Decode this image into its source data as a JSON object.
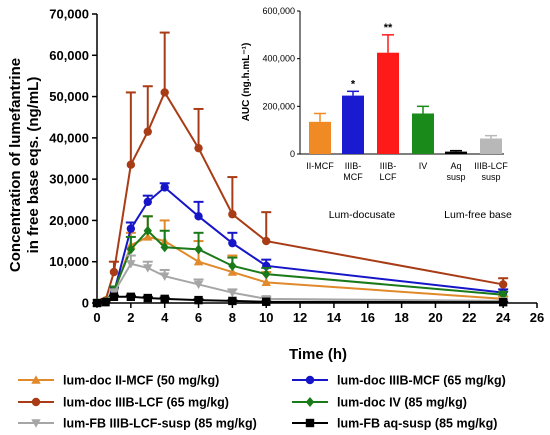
{
  "chart_data": [
    {
      "type": "line",
      "xlabel": "Time (h)",
      "ylabel": [
        "Concentration of lumefantrine",
        "in free base eqs. (ng/mL)"
      ],
      "xlim": [
        0,
        26
      ],
      "ylim": [
        0,
        70000
      ],
      "x_ticks": [
        "0",
        "2",
        "4",
        "6",
        "8",
        "10",
        "12",
        "14",
        "16",
        "18",
        "20",
        "22",
        "24",
        "26"
      ],
      "y_ticks": [
        "0",
        "10,000",
        "20,000",
        "30,000",
        "40,000",
        "50,000",
        "60,000",
        "70,000"
      ],
      "x": [
        0,
        0.5,
        1,
        2,
        3,
        4,
        6,
        8,
        10,
        24
      ],
      "legend_position": "bottom",
      "series": [
        {
          "name": "lum-doc II-MCF (50 mg/kg)",
          "color": "#e08a2c",
          "marker": "triangle-up",
          "values": [
            0,
            300,
            2500,
            14000,
            16000,
            15000,
            10000,
            7500,
            5000,
            1000
          ],
          "err": [
            0,
            200,
            1000,
            3000,
            5000,
            5000,
            5000,
            4000,
            2500,
            600
          ]
        },
        {
          "name": "lum-doc IIIB-MCF (65 mg/kg)",
          "color": "#1616c8",
          "marker": "circle",
          "values": [
            0,
            500,
            2500,
            18000,
            24500,
            28000,
            21000,
            14500,
            9000,
            2500
          ],
          "err": [
            0,
            300,
            1200,
            1500,
            1500,
            1000,
            3500,
            2500,
            1500,
            800
          ]
        },
        {
          "name": "lum-doc IIIB-LCF (65 mg/kg)",
          "color": "#a83c16",
          "marker": "circle",
          "values": [
            0,
            600,
            7500,
            33500,
            41500,
            51000,
            37500,
            21500,
            15000,
            4500
          ],
          "err": [
            0,
            400,
            2500,
            17500,
            11000,
            14500,
            9500,
            9000,
            7000,
            1500
          ]
        },
        {
          "name": "lum-doc IV (85 mg/kg)",
          "color": "#1a7a1a",
          "marker": "diamond",
          "values": [
            0,
            400,
            3000,
            13000,
            17500,
            13500,
            13000,
            9000,
            7000,
            2000
          ],
          "err": [
            0,
            200,
            1000,
            3000,
            3500,
            4000,
            4000,
            2000,
            1500,
            700
          ]
        },
        {
          "name": "lum-FB IIIB-LCF-susp (85 mg/kg)",
          "color": "#a6a6a6",
          "marker": "triangle-down",
          "values": [
            0,
            300,
            2500,
            9500,
            8500,
            6500,
            4500,
            2500,
            1000,
            500
          ],
          "err": [
            0,
            200,
            800,
            2000,
            1500,
            1500,
            1200,
            800,
            500,
            300
          ]
        },
        {
          "name": "lum-FB aq-susp (85 mg/kg)",
          "color": "#000000",
          "marker": "square",
          "values": [
            0,
            200,
            1500,
            1500,
            1200,
            1000,
            700,
            500,
            300,
            200
          ],
          "err": [
            0,
            100,
            300,
            300,
            300,
            300,
            200,
            150,
            100,
            80
          ]
        }
      ]
    },
    {
      "type": "bar",
      "ylabel": "AUC (ng.h.mL⁻¹)",
      "ylim": [
        0,
        600000
      ],
      "y_ticks": [
        "0",
        "200,000",
        "400,000",
        "600,000"
      ],
      "categories": [
        [
          "II-MCF"
        ],
        [
          "IIIB-",
          "MCF"
        ],
        [
          "IIIB-",
          "LCF"
        ],
        [
          "IV"
        ],
        [
          "Aq",
          "susp"
        ],
        [
          "IIIB-LCF",
          "susp"
        ]
      ],
      "values": [
        135000,
        245000,
        425000,
        170000,
        10000,
        65000
      ],
      "err": [
        35000,
        18000,
        75000,
        30000,
        4000,
        12000
      ],
      "colors": [
        "#f08a24",
        "#1a1ad0",
        "#ff1a1a",
        "#1a8a1a",
        "#000000",
        "#b8b8b8"
      ],
      "annotations": [
        "",
        "*",
        "**",
        "",
        "",
        ""
      ],
      "groups": [
        "Lum-docusate",
        "Lum-free base"
      ]
    }
  ]
}
